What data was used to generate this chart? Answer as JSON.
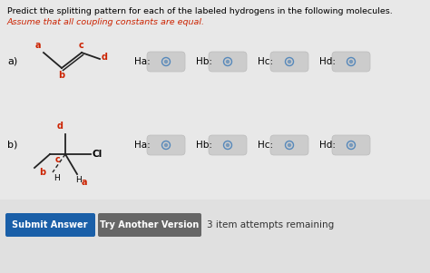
{
  "title_line1": "Predict the splitting pattern for each of the labeled hydrogens in the following molecules.",
  "title_line2": "Assume that all coupling constants are equal.",
  "title_color": "#000000",
  "subtitle_color": "#cc2200",
  "bg_color": "#e8e8e8",
  "label_color": "#cc2200",
  "submit_text": "Submit Answer",
  "try_text": "Try Another Version",
  "attempts_text": "3 item attempts remaining",
  "submit_color": "#1a5fa8",
  "try_color": "#666666",
  "button_text_color": "#ffffff",
  "radio_labels_a": [
    "Ha:",
    "Hb:",
    "Hc:",
    "Hd:"
  ],
  "radio_labels_b": [
    "Ha:",
    "Hb:",
    "Hc:",
    "Hd:"
  ]
}
